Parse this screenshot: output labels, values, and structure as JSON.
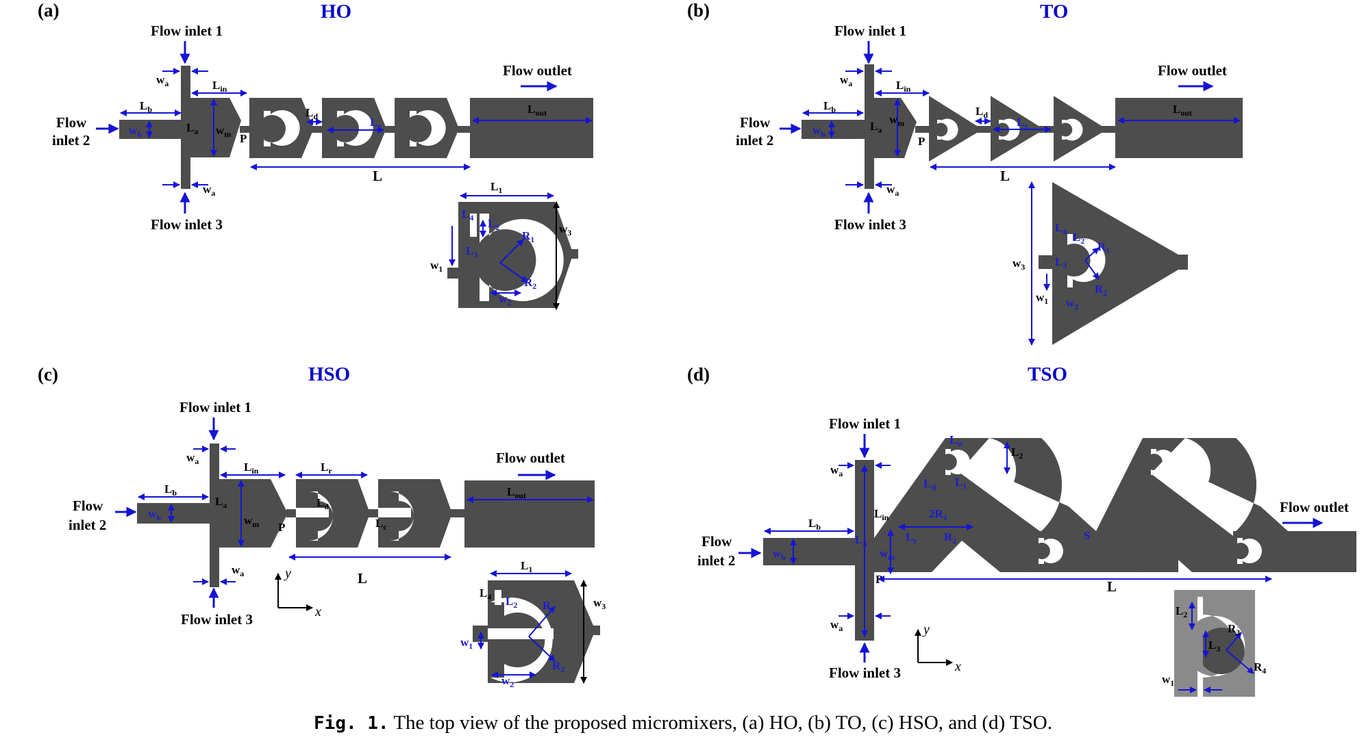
{
  "panels": {
    "a": {
      "letter": "(a)",
      "title": "HO"
    },
    "b": {
      "letter": "(b)",
      "title": "TO"
    },
    "c": {
      "letter": "(c)",
      "title": "HSO"
    },
    "d": {
      "letter": "(d)",
      "title": "TSO"
    }
  },
  "labels": {
    "inlet1": "Flow inlet 1",
    "inlet2_line1": "Flow",
    "inlet2_line2": "inlet 2",
    "inlet3": "Flow inlet 3",
    "outlet": "Flow outlet",
    "wa": "w",
    "wa_sub": "a",
    "wb": "w",
    "wb_sub": "b",
    "wm": "w",
    "wm_sub": "m",
    "Lb": "L",
    "Lb_sub": "b",
    "La": "L",
    "La_sub": "a",
    "Lin": "L",
    "Lin_sub": "in",
    "Ld": "L",
    "Ld_sub": "d",
    "Lr": "L",
    "Lr_sub": "r",
    "Lc": "L",
    "Lc_sub": "c",
    "Lout": "L",
    "Lout_sub": "out",
    "L": "L",
    "P": "P",
    "S": "S",
    "L1": "L",
    "L1_sub": "1",
    "L2": "L",
    "L2_sub": "2",
    "L3": "L",
    "L3_sub": "3",
    "L4": "L",
    "L4_sub": "4",
    "R1": "R",
    "R1_sub": "1",
    "R2": "R",
    "R2_sub": "2",
    "R3": "R",
    "R3_sub": "3",
    "R4": "R",
    "R4_sub": "4",
    "w1": "w",
    "w1_sub": "1",
    "w2": "w",
    "w2_sub": "2",
    "w3": "w",
    "w3_sub": "3",
    "Lw": "L",
    "Lw_sub": "w",
    "two_R1": "2R",
    "two_R1_sub": "1",
    "axis_x": "x",
    "axis_y": "y"
  },
  "caption": {
    "label": "Fig. 1.",
    "text": "The top view of the proposed micromixers, (a) HO, (b) TO, (c) HSO, and (d) TSO."
  }
}
